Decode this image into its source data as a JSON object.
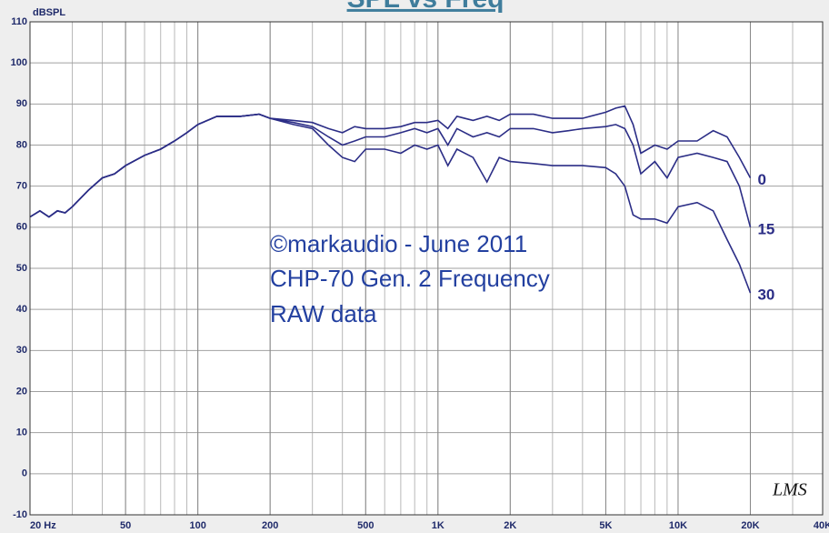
{
  "chart_data": {
    "type": "line",
    "title": "SPL vs Freq",
    "y_label": "dBSPL",
    "annotations": [
      "©markaudio - June 2011",
      "CHP-70 Gen. 2 Frequency",
      "RAW data"
    ],
    "watermark": "LMS",
    "xscale": "log",
    "grid": true,
    "minor_grid": true,
    "xlim": [
      20,
      40000
    ],
    "ylim": [
      -10,
      110
    ],
    "xticks": [
      {
        "value": 20,
        "label": "20 Hz"
      },
      50,
      100,
      200,
      500,
      {
        "value": 1000,
        "label": "1K"
      },
      {
        "value": 2000,
        "label": "2K"
      },
      {
        "value": 5000,
        "label": "5K"
      },
      {
        "value": 10000,
        "label": "10K"
      },
      {
        "value": 20000,
        "label": "20K"
      },
      {
        "value": 40000,
        "label": "40K"
      }
    ],
    "yticks": [
      -10,
      0,
      10,
      20,
      30,
      40,
      50,
      60,
      70,
      80,
      90,
      100,
      110
    ],
    "x": [
      20,
      22,
      24,
      26,
      28,
      30,
      35,
      40,
      45,
      50,
      60,
      70,
      80,
      90,
      100,
      120,
      150,
      180,
      200,
      250,
      300,
      350,
      400,
      450,
      500,
      600,
      700,
      800,
      900,
      1000,
      1100,
      1200,
      1400,
      1600,
      1800,
      2000,
      2500,
      3000,
      3500,
      4000,
      5000,
      5500,
      6000,
      6500,
      7000,
      8000,
      9000,
      10000,
      12000,
      14000,
      16000,
      18000,
      20000
    ],
    "series": [
      {
        "name": "0",
        "color": "#2b2d86",
        "values": [
          62.5,
          64,
          62.5,
          64,
          63.5,
          65,
          69,
          72,
          73,
          75,
          77.5,
          79,
          81,
          83,
          85,
          87,
          87,
          87.5,
          86.5,
          86,
          85.5,
          84,
          83,
          84.5,
          84,
          84,
          84.5,
          85.5,
          85.5,
          86,
          84,
          87,
          86,
          87,
          86,
          87.5,
          87.5,
          86.5,
          86.5,
          86.5,
          88,
          89,
          89.5,
          85,
          78,
          80,
          79,
          81,
          81,
          83.5,
          82,
          77,
          72
        ]
      },
      {
        "name": "15",
        "color": "#2b2d86",
        "values": [
          62.5,
          64,
          62.5,
          64,
          63.5,
          65,
          69,
          72,
          73,
          75,
          77.5,
          79,
          81,
          83,
          85,
          87,
          87,
          87.5,
          86.5,
          85.5,
          84.5,
          82,
          80,
          81,
          82,
          82,
          83,
          84,
          83,
          84,
          80,
          84,
          82,
          83,
          82,
          84,
          84,
          83,
          83.5,
          84,
          84.5,
          85,
          84,
          80,
          73,
          76,
          72,
          77,
          78,
          77,
          76,
          70,
          60
        ]
      },
      {
        "name": "30",
        "color": "#2b2d86",
        "values": [
          62.5,
          64,
          62.5,
          64,
          63.5,
          65,
          69,
          72,
          73,
          75,
          77.5,
          79,
          81,
          83,
          85,
          87,
          87,
          87.5,
          86.5,
          85,
          84,
          80,
          77,
          76,
          79,
          79,
          78,
          80,
          79,
          80,
          75,
          79,
          77,
          71,
          77,
          76,
          75.5,
          75,
          75,
          75,
          74.5,
          73,
          70,
          63,
          62,
          62,
          61,
          65,
          66,
          64,
          57,
          51,
          44
        ]
      }
    ]
  }
}
